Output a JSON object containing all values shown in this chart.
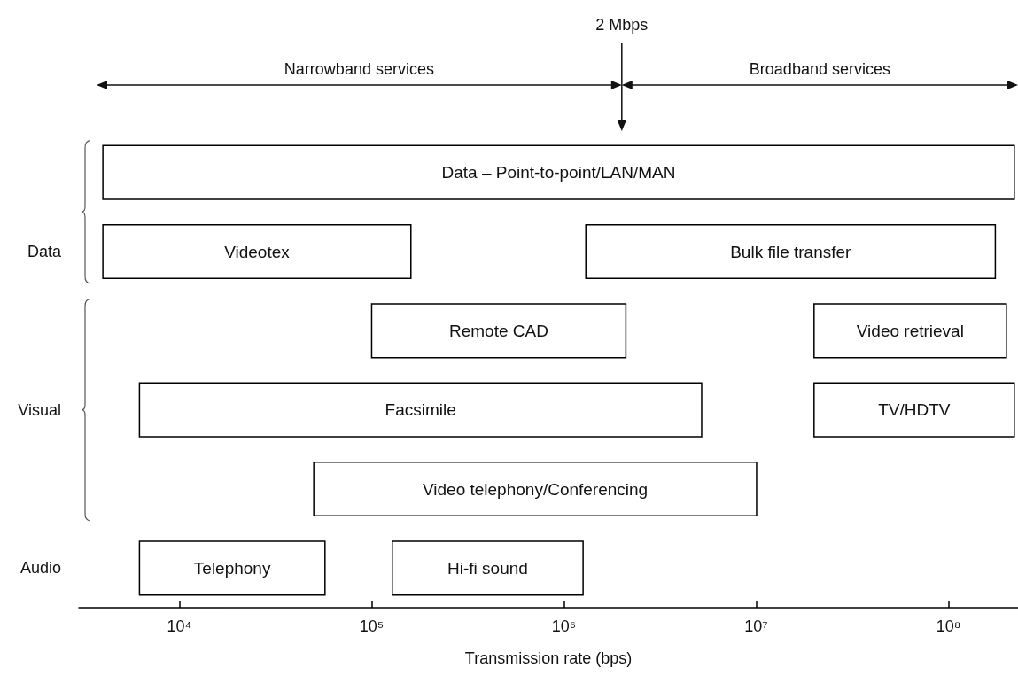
{
  "chart_data": {
    "type": "bar",
    "orientation": "horizontal",
    "log": "x",
    "categories": [
      null,
      "Data",
      null,
      "Visual",
      null,
      "Audio"
    ],
    "xlabel": "Transmission rate (bps)",
    "xlim": [
      3000,
      230000000
    ],
    "xticks": [
      {
        "value": 10000,
        "label": "10⁴"
      },
      {
        "value": 100000,
        "label": "10⁵"
      },
      {
        "value": 1000000,
        "label": "10⁶"
      },
      {
        "value": 10000000,
        "label": "10⁷"
      },
      {
        "value": 100000000,
        "label": "10⁸"
      }
    ],
    "series": [
      {
        "name": "Data – Point-to-point/LAN/MAN",
        "color": "#ffffff",
        "base": [
          4000,
          null,
          null,
          null,
          null,
          null
        ],
        "values": [
          220000000,
          null,
          null,
          null,
          null,
          null
        ]
      },
      {
        "name": "Videotex",
        "color": "#ffffff",
        "base": [
          null,
          4000,
          null,
          null,
          null,
          null
        ],
        "values": [
          null,
          156000,
          null,
          null,
          null,
          null
        ]
      },
      {
        "name": "Bulk file transfer",
        "color": "#ffffff",
        "base": [
          null,
          1300000,
          null,
          null,
          null,
          null
        ],
        "values": [
          null,
          174000000,
          null,
          null,
          null,
          null
        ]
      },
      {
        "name": "Remote CAD",
        "color": "#ffffff",
        "base": [
          null,
          null,
          100000,
          null,
          null,
          null
        ],
        "values": [
          null,
          null,
          2000000,
          null,
          null,
          null
        ]
      },
      {
        "name": "Video retrieval",
        "color": "#ffffff",
        "base": [
          null,
          null,
          20000000,
          null,
          null,
          null
        ],
        "values": [
          null,
          null,
          180000000,
          null,
          null,
          null
        ]
      },
      {
        "name": "Facsimile",
        "color": "#ffffff",
        "base": [
          null,
          null,
          null,
          6200,
          null,
          null
        ],
        "values": [
          null,
          null,
          null,
          5200000,
          null,
          null
        ]
      },
      {
        "name": "TV/HDTV",
        "color": "#ffffff",
        "base": [
          null,
          null,
          null,
          20000000,
          null,
          null
        ],
        "values": [
          null,
          null,
          null,
          200000000,
          null,
          null
        ]
      },
      {
        "name": "Video telephony/Conferencing",
        "color": "#ffffff",
        "base": [
          null,
          null,
          null,
          null,
          50000,
          null
        ],
        "values": [
          null,
          null,
          null,
          null,
          10000000,
          null
        ]
      },
      {
        "name": "Telephony",
        "color": "#ffffff",
        "base": [
          null,
          null,
          null,
          null,
          null,
          6200
        ],
        "values": [
          null,
          null,
          null,
          null,
          null,
          51000
        ]
      },
      {
        "name": "Hi-fi sound",
        "color": "#ffffff",
        "base": [
          null,
          null,
          null,
          null,
          null,
          128000
        ],
        "values": [
          null,
          null,
          null,
          null,
          null,
          1130000
        ]
      }
    ],
    "ref_lines": [
      {
        "axis": "x",
        "value": 2000000,
        "label": "2 Mbps"
      }
    ],
    "annotations": [
      "Narrowband services",
      "Broadband services"
    ]
  }
}
